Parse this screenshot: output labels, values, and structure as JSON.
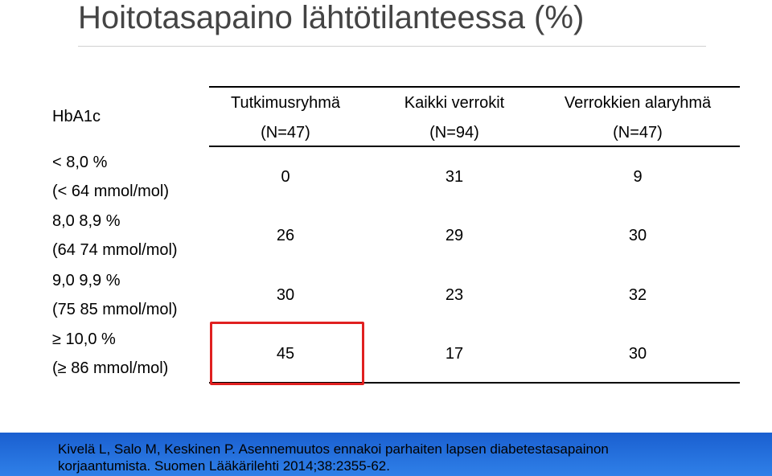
{
  "title": "Hoitotasapaino lähtötilanteessa (%)",
  "table": {
    "corner": "HbA1c",
    "columns": [
      {
        "name": "Tutkimusryhmä",
        "n": "(N=47)"
      },
      {
        "name": "Kaikki verrokit",
        "n": "(N=94)"
      },
      {
        "name": "Verrokkien alaryhmä",
        "n": "(N=47)"
      }
    ],
    "rows": [
      {
        "label": [
          "< 8,0 %",
          "(< 64 mmol/mol)"
        ],
        "values": [
          0,
          31,
          9
        ]
      },
      {
        "label": [
          "8,0 8,9 %",
          "(64 74 mmol/mol)"
        ],
        "values": [
          26,
          29,
          30
        ]
      },
      {
        "label": [
          "9,0 9,9 %",
          "(75 85 mmol/mol)"
        ],
        "values": [
          30,
          23,
          32
        ]
      },
      {
        "label": [
          "≥ 10,0 %",
          "(≥ 86 mmol/mol)"
        ],
        "values": [
          45,
          17,
          30
        ]
      }
    ]
  },
  "footer": [
    "Kivelä L, Salo M, Keskinen P. Asennemuutos ennakoi parhaiten lapsen diabetestasapainon",
    "korjaantumista. Suomen Lääkärilehti 2014;38:2355-62."
  ]
}
